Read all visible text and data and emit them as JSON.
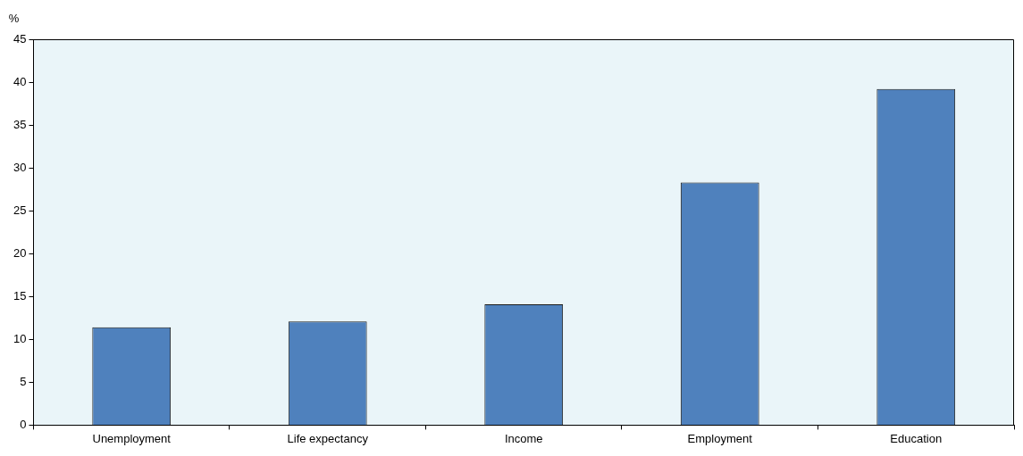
{
  "chart_data": {
    "type": "bar",
    "ylabel": "%",
    "categories": [
      "Unemployment",
      "Life expectancy",
      "Income",
      "Employment",
      "Education"
    ],
    "values": [
      11.4,
      12.1,
      14.1,
      28.3,
      39.2
    ],
    "color": "#4f81bd",
    "ylim": [
      0,
      45
    ],
    "yticks": [
      0,
      5,
      10,
      15,
      20,
      25,
      30,
      35,
      40,
      45
    ],
    "grid": false,
    "legend": false
  }
}
